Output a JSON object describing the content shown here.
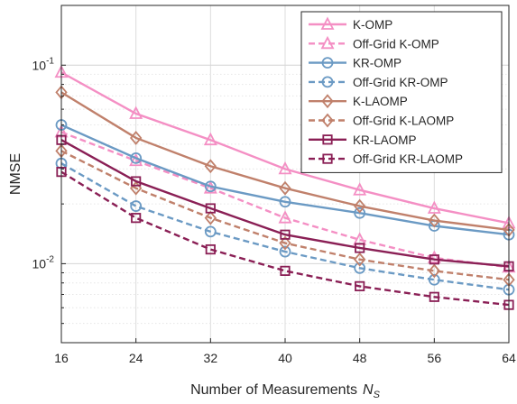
{
  "chart_data": {
    "type": "line",
    "xlabel": "Number of Measurements",
    "xlabel_symbol": "N",
    "xlabel_subscript": "S",
    "ylabel": "NMSE",
    "yscale": "log",
    "x": [
      16,
      24,
      32,
      40,
      48,
      56,
      64
    ],
    "xlim": [
      16,
      64
    ],
    "ylim": [
      0.004,
      0.2
    ],
    "xticks": [
      "16",
      "24",
      "32",
      "40",
      "48",
      "56",
      "64"
    ],
    "yticks": [
      {
        "value": 0.1,
        "base": "10",
        "exp": "-1"
      },
      {
        "value": 0.01,
        "base": "10",
        "exp": "-2"
      }
    ],
    "grid": true,
    "legend_position": "top-right",
    "series": [
      {
        "name": "K-OMP",
        "color": "#f48fc4",
        "dash": "solid",
        "marker": "triangle",
        "values": [
          0.092,
          0.057,
          0.042,
          0.03,
          0.0235,
          0.019,
          0.016
        ]
      },
      {
        "name": "Off-Grid K-OMP",
        "color": "#f48fc4",
        "dash": "dashed",
        "marker": "triangle",
        "values": [
          0.046,
          0.033,
          0.024,
          0.017,
          0.0132,
          0.0107,
          0.0096
        ]
      },
      {
        "name": "KR-OMP",
        "color": "#6b9ac4",
        "dash": "solid",
        "marker": "circle",
        "values": [
          0.05,
          0.034,
          0.0245,
          0.0205,
          0.018,
          0.0155,
          0.014
        ]
      },
      {
        "name": "Off-Grid KR-OMP",
        "color": "#6b9ac4",
        "dash": "dashed",
        "marker": "circle",
        "values": [
          0.032,
          0.0195,
          0.0145,
          0.0115,
          0.0095,
          0.0083,
          0.0074
        ]
      },
      {
        "name": "K-LAOMP",
        "color": "#c0806b",
        "dash": "solid",
        "marker": "diamond",
        "values": [
          0.073,
          0.043,
          0.031,
          0.024,
          0.0195,
          0.0165,
          0.0148
        ]
      },
      {
        "name": "Off-Grid K-LAOMP",
        "color": "#c0806b",
        "dash": "dashed",
        "marker": "diamond",
        "values": [
          0.037,
          0.024,
          0.017,
          0.0127,
          0.0105,
          0.0092,
          0.0083
        ]
      },
      {
        "name": "KR-LAOMP",
        "color": "#8a1f55",
        "dash": "solid",
        "marker": "square",
        "values": [
          0.042,
          0.026,
          0.019,
          0.014,
          0.012,
          0.0105,
          0.0097
        ]
      },
      {
        "name": "Off-Grid KR-LAOMP",
        "color": "#8a1f55",
        "dash": "dashed",
        "marker": "square",
        "values": [
          0.029,
          0.017,
          0.0118,
          0.0092,
          0.0077,
          0.0068,
          0.0062
        ]
      }
    ]
  }
}
